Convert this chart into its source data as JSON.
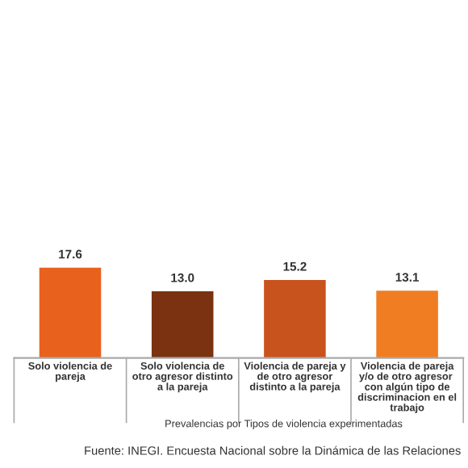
{
  "chart_data": {
    "type": "bar",
    "xlabel": "Prevalencias por Tipos de violencia experimentadas",
    "categories": [
      "Solo violencia de pareja",
      "Solo violencia de otro agresor distinto a la pareja",
      "Violencia de pareja y de otro agresor distinto a la pareja",
      "Violencia de pareja y/o de otro agresor  con algún tipo de discriminacion en el trabajo"
    ],
    "values": [
      17.6,
      13.0,
      15.2,
      13.1
    ],
    "colors": [
      "#e8621e",
      "#7a3210",
      "#c9531c",
      "#f07d22"
    ],
    "value_labels": [
      "17.6",
      "13.0",
      "15.2",
      "13.1"
    ],
    "annotations": [
      "Fuente: INEGI. Encuesta Nacional sobre la Dinámica de las Relaciones"
    ]
  }
}
